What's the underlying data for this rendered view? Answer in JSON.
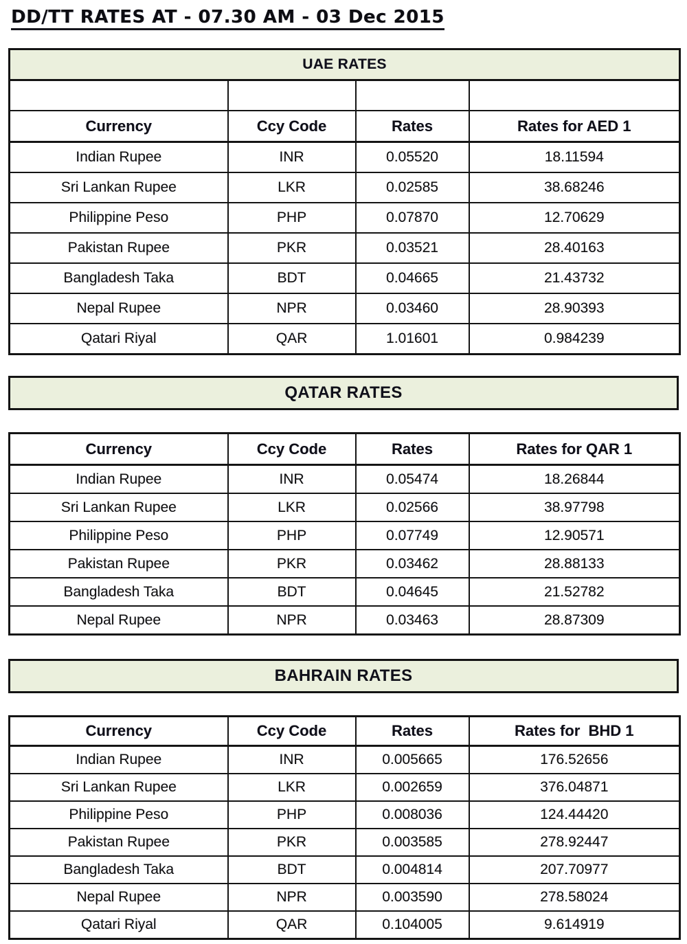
{
  "title": "DD/TT RATES AT - 07.30 AM - 03 Dec 2015",
  "colors": {
    "banner_background": "#EBF0DD",
    "border": "#141414",
    "text": "#101010"
  },
  "sections": [
    {
      "banner": "UAE RATES",
      "columns": [
        "Currency",
        "Ccy Code",
        "Rates",
        "Rates for AED 1"
      ],
      "rows": [
        [
          "Indian Rupee",
          "INR",
          "0.05520",
          "18.11594"
        ],
        [
          "Sri Lankan Rupee",
          "LKR",
          "0.02585",
          "38.68246"
        ],
        [
          "Philippine Peso",
          "PHP",
          "0.07870",
          "12.70629"
        ],
        [
          "Pakistan Rupee",
          "PKR",
          "0.03521",
          "28.40163"
        ],
        [
          "Bangladesh Taka",
          "BDT",
          "0.04665",
          "21.43732"
        ],
        [
          "Nepal Rupee",
          "NPR",
          "0.03460",
          "28.90393"
        ],
        [
          "Qatari Riyal",
          "QAR",
          "1.01601",
          "0.984239"
        ]
      ]
    },
    {
      "banner": "QATAR RATES",
      "columns": [
        "Currency",
        "Ccy Code",
        "Rates",
        "Rates for QAR 1"
      ],
      "rows": [
        [
          "Indian Rupee",
          "INR",
          "0.05474",
          "18.26844"
        ],
        [
          "Sri Lankan Rupee",
          "LKR",
          "0.02566",
          "38.97798"
        ],
        [
          "Philippine Peso",
          "PHP",
          "0.07749",
          "12.90571"
        ],
        [
          "Pakistan Rupee",
          "PKR",
          "0.03462",
          "28.88133"
        ],
        [
          "Bangladesh Taka",
          "BDT",
          "0.04645",
          "21.52782"
        ],
        [
          "Nepal Rupee",
          "NPR",
          "0.03463",
          "28.87309"
        ]
      ]
    },
    {
      "banner": "BAHRAIN RATES",
      "columns": [
        "Currency",
        "Ccy Code",
        "Rates",
        "Rates for  BHD 1"
      ],
      "rows": [
        [
          "Indian Rupee",
          "INR",
          "0.005665",
          "176.52656"
        ],
        [
          "Sri Lankan Rupee",
          "LKR",
          "0.002659",
          "376.04871"
        ],
        [
          "Philippine Peso",
          "PHP",
          "0.008036",
          "124.44420"
        ],
        [
          "Pakistan Rupee",
          "PKR",
          "0.003585",
          "278.92447"
        ],
        [
          "Bangladesh Taka",
          "BDT",
          "0.004814",
          "207.70977"
        ],
        [
          "Nepal Rupee",
          "NPR",
          "0.003590",
          "278.58024"
        ],
        [
          "Qatari Riyal",
          "QAR",
          "0.104005",
          "9.614919"
        ]
      ]
    }
  ]
}
